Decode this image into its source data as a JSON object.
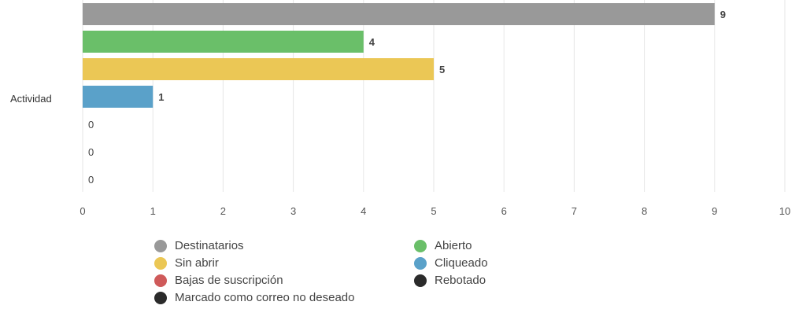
{
  "chart_data": {
    "type": "bar",
    "orientation": "horizontal",
    "category": "Actividad",
    "series": [
      {
        "name": "Destinatarios",
        "value": 9,
        "color": "#999999"
      },
      {
        "name": "Abierto",
        "value": 4,
        "color": "#6abf69"
      },
      {
        "name": "Sin abrir",
        "value": 5,
        "color": "#ebc755"
      },
      {
        "name": "Cliqueado",
        "value": 1,
        "color": "#5aa1c9"
      },
      {
        "name": "Bajas de suscripción",
        "value": 0,
        "color": "#cf5a5a"
      },
      {
        "name": "Rebotado",
        "value": 0,
        "color": "#2b2b2b"
      },
      {
        "name": "Marcado como correo no deseado",
        "value": 0,
        "color": "#2b2b2b"
      }
    ],
    "xlim": [
      0,
      10
    ],
    "xticks": [
      "0",
      "1",
      "2",
      "3",
      "4",
      "5",
      "6",
      "7",
      "8",
      "9",
      "10"
    ],
    "grid": true,
    "legend_position": "bottom",
    "legend_order": [
      "Destinatarios",
      "Abierto",
      "Sin abrir",
      "Cliqueado",
      "Bajas de suscripción",
      "Rebotado",
      "Marcado como correo no deseado"
    ]
  }
}
